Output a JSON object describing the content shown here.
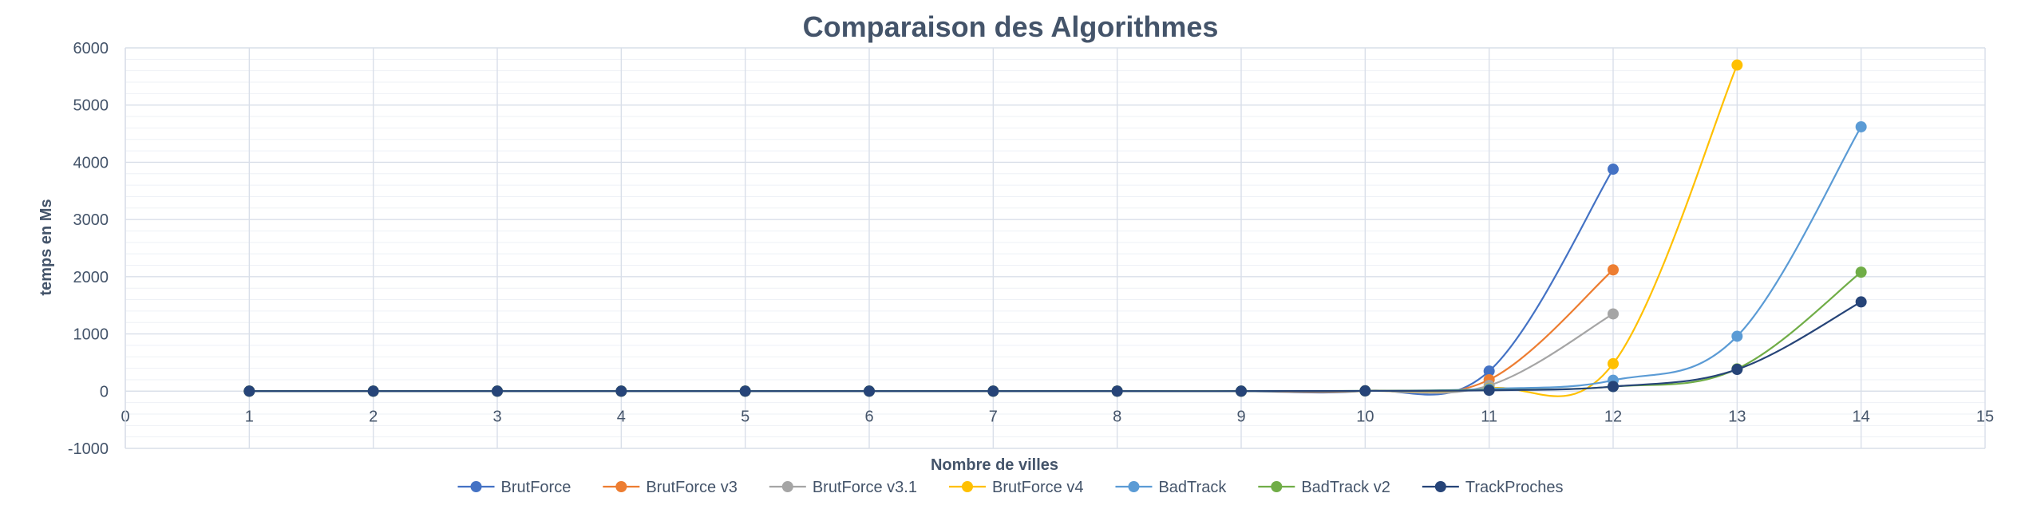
{
  "chart_data": {
    "type": "scatter",
    "title": "Comparaison des Algorithmes",
    "xlabel": "Nombre de villes",
    "ylabel": "temps en Ms",
    "xlim": [
      0,
      15
    ],
    "ylim": [
      -1000,
      6000
    ],
    "x_ticks": [
      0,
      1,
      2,
      3,
      4,
      5,
      6,
      7,
      8,
      9,
      10,
      11,
      12,
      13,
      14,
      15
    ],
    "y_ticks": [
      -1000,
      0,
      1000,
      2000,
      3000,
      4000,
      5000,
      6000
    ],
    "grid": true,
    "smooth_lines": true,
    "legend_position": "bottom",
    "series": [
      {
        "name": "BrutForce",
        "color": "#4472c4",
        "x": [
          1,
          2,
          3,
          4,
          5,
          6,
          7,
          8,
          9,
          10,
          11,
          12
        ],
        "y": [
          0,
          0,
          0,
          0,
          0,
          0,
          0,
          0,
          0,
          5,
          350,
          3880
        ]
      },
      {
        "name": "BrutForce v3",
        "color": "#ed7d31",
        "x": [
          1,
          2,
          3,
          4,
          5,
          6,
          7,
          8,
          9,
          10,
          11,
          12
        ],
        "y": [
          0,
          0,
          0,
          0,
          0,
          0,
          0,
          0,
          0,
          5,
          200,
          2120
        ]
      },
      {
        "name": "BrutForce v3.1",
        "color": "#a5a5a5",
        "x": [
          1,
          2,
          3,
          4,
          5,
          6,
          7,
          8,
          9,
          10,
          11,
          12
        ],
        "y": [
          0,
          0,
          0,
          0,
          0,
          0,
          0,
          0,
          0,
          5,
          100,
          1350
        ]
      },
      {
        "name": "BrutForce v4",
        "color": "#ffc000",
        "x": [
          1,
          2,
          3,
          4,
          5,
          6,
          7,
          8,
          9,
          10,
          11,
          12,
          13
        ],
        "y": [
          0,
          0,
          0,
          0,
          0,
          0,
          0,
          0,
          0,
          5,
          50,
          480,
          5700
        ]
      },
      {
        "name": "BadTrack",
        "color": "#5b9bd5",
        "x": [
          1,
          2,
          3,
          4,
          5,
          6,
          7,
          8,
          9,
          10,
          11,
          12,
          13,
          14
        ],
        "y": [
          0,
          0,
          0,
          0,
          0,
          0,
          0,
          0,
          0,
          5,
          40,
          190,
          960,
          4620
        ]
      },
      {
        "name": "BadTrack v2",
        "color": "#70ad47",
        "x": [
          1,
          2,
          3,
          4,
          5,
          6,
          7,
          8,
          9,
          10,
          11,
          12,
          13,
          14
        ],
        "y": [
          0,
          0,
          0,
          0,
          0,
          0,
          0,
          0,
          0,
          5,
          20,
          80,
          390,
          2080
        ]
      },
      {
        "name": "TrackProches",
        "color": "#264478",
        "x": [
          1,
          2,
          3,
          4,
          5,
          6,
          7,
          8,
          9,
          10,
          11,
          12,
          13,
          14
        ],
        "y": [
          0,
          0,
          0,
          0,
          0,
          0,
          0,
          0,
          0,
          5,
          15,
          80,
          380,
          1560
        ]
      }
    ]
  }
}
